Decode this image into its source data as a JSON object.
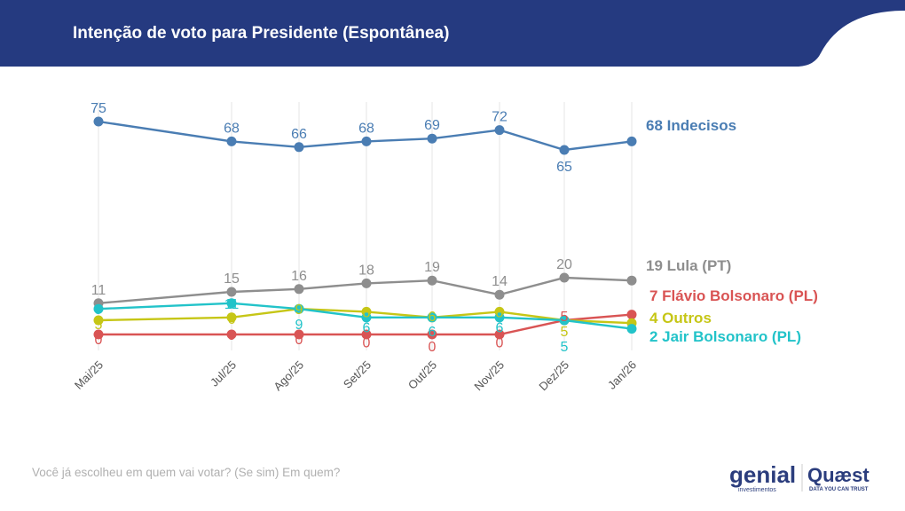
{
  "header": {
    "title": "Intenção de voto para Presidente (Espontânea)",
    "background": "#253a80"
  },
  "footer": {
    "question": "Você já escolheu em quem vai votar? (Se sim) Em quem?",
    "logos": [
      "genial investimentos",
      "Quæst DATA YOU CAN TRUST"
    ]
  },
  "chart_data": {
    "type": "line",
    "categories": [
      "Mai/25",
      "Jul/25",
      "Ago/25",
      "Set/25",
      "Out/25",
      "Nov/25",
      "Dez/25",
      "Jan/26"
    ],
    "ylim": [
      0,
      80
    ],
    "grid": "vertical",
    "legend": "right, end-of-line labels",
    "series": [
      {
        "name": "Indecisos",
        "end_label": "68 Indecisos",
        "color": "#4a7db3",
        "values": [
          75,
          68,
          66,
          68,
          69,
          72,
          65,
          68
        ]
      },
      {
        "name": "Lula (PT)",
        "end_label": "19 Lula (PT)",
        "color": "#8e8e8e",
        "values": [
          11,
          15,
          16,
          18,
          19,
          14,
          20,
          19
        ]
      },
      {
        "name": "Flávio Bolsonaro (PL)",
        "end_label": "7 Flávio Bolsonaro (PL)",
        "color": "#d95454",
        "values": [
          0,
          0,
          0,
          0,
          0,
          0,
          5,
          7
        ]
      },
      {
        "name": "Outros",
        "end_label": "4 Outros",
        "color": "#c6c616",
        "values": [
          5,
          6,
          9,
          8,
          6,
          8,
          5,
          4
        ]
      },
      {
        "name": "Jair Bolsonaro (PL)",
        "end_label": "2 Jair Bolsonaro (PL)",
        "color": "#22c3c9",
        "values": [
          9,
          11,
          9,
          6,
          6,
          6,
          5,
          2
        ]
      }
    ]
  }
}
